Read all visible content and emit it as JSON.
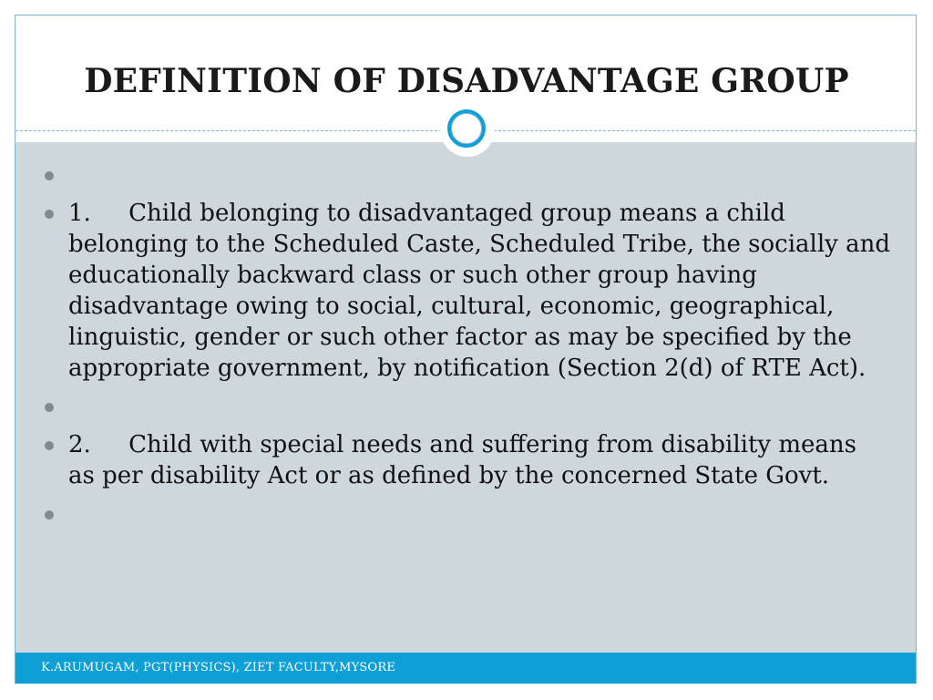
{
  "slide": {
    "title": "DEFINITION OF DISADVANTAGE GROUP",
    "bullets": [
      "",
      "1.     Child belonging to disadvantaged group means a child belonging to the Scheduled Caste, Scheduled Tribe, the socially and educationally backward class or such other group having disadvantage owing to social, cultural, economic, geographical, linguistic, gender or such other factor as may be specified by the appropriate government, by notification (Section 2(d) of RTE Act).",
      "",
      "2.     Child with special needs and suffering from disability means as per disability Act or as defined by the concerned State Govt.",
      ""
    ],
    "footer": "K.ARUMUGAM, PGT(PHYSICS), ZIET FACULTY,MYSORE"
  },
  "colors": {
    "accent": "#0d9fd6",
    "body_panel": "#cdd7dc",
    "border": "#79b4d1",
    "bullet": "#7f8c92"
  },
  "icons": {
    "title_divider": "ring-icon"
  }
}
